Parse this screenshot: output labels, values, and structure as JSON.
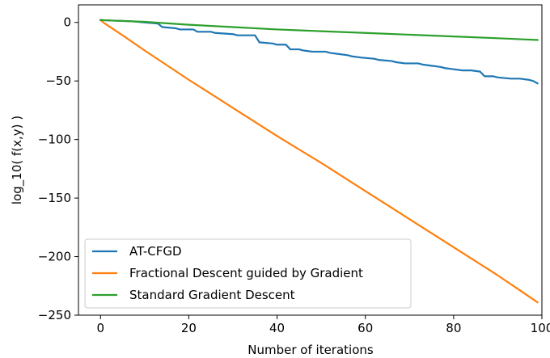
{
  "chart_data": {
    "type": "line",
    "title": "",
    "xlabel": "Number of iterations",
    "ylabel": "log_10( f(x,y) )",
    "xlim": [
      -5,
      100
    ],
    "ylim": [
      -250,
      15
    ],
    "xticks": [
      0,
      20,
      40,
      60,
      80,
      100
    ],
    "yticks": [
      0,
      -50,
      -100,
      -150,
      -200,
      -250
    ],
    "grid": false,
    "legend_position": "lower-left",
    "series": [
      {
        "name": "AT-CFGD",
        "color": "#1f77b4",
        "points": [
          [
            0,
            2
          ],
          [
            3,
            1.5
          ],
          [
            7,
            1
          ],
          [
            10,
            0
          ],
          [
            13,
            -1
          ],
          [
            14,
            -4
          ],
          [
            17,
            -5
          ],
          [
            18,
            -6
          ],
          [
            21,
            -6
          ],
          [
            22,
            -8
          ],
          [
            25,
            -8
          ],
          [
            26,
            -9
          ],
          [
            30,
            -10
          ],
          [
            31,
            -11
          ],
          [
            35,
            -11
          ],
          [
            36,
            -17
          ],
          [
            39,
            -18
          ],
          [
            40,
            -19
          ],
          [
            42,
            -19
          ],
          [
            43,
            -23
          ],
          [
            45,
            -23
          ],
          [
            46,
            -24
          ],
          [
            48,
            -25
          ],
          [
            51,
            -25
          ],
          [
            52,
            -26
          ],
          [
            54,
            -27
          ],
          [
            56,
            -28
          ],
          [
            57,
            -29
          ],
          [
            59,
            -30
          ],
          [
            62,
            -31
          ],
          [
            63,
            -32
          ],
          [
            66,
            -33
          ],
          [
            67,
            -34
          ],
          [
            69,
            -35
          ],
          [
            72,
            -35
          ],
          [
            73,
            -36
          ],
          [
            75,
            -37
          ],
          [
            77,
            -38
          ],
          [
            78,
            -39
          ],
          [
            80,
            -40
          ],
          [
            82,
            -41
          ],
          [
            84,
            -41
          ],
          [
            86,
            -42
          ],
          [
            87,
            -46
          ],
          [
            89,
            -46
          ],
          [
            90,
            -47
          ],
          [
            93,
            -48
          ],
          [
            95,
            -48
          ],
          [
            97,
            -49
          ],
          [
            98,
            -50
          ],
          [
            99,
            -52
          ]
        ]
      },
      {
        "name": "Fractional Descent guided by Gradient",
        "color": "#ff7f0e",
        "points": [
          [
            0,
            2
          ],
          [
            1,
            -1
          ],
          [
            3,
            -6
          ],
          [
            5,
            -11
          ],
          [
            10,
            -24
          ],
          [
            20,
            -49
          ],
          [
            30,
            -73
          ],
          [
            40,
            -97
          ],
          [
            50,
            -120
          ],
          [
            60,
            -144
          ],
          [
            70,
            -168
          ],
          [
            80,
            -192
          ],
          [
            90,
            -216
          ],
          [
            99,
            -239
          ]
        ]
      },
      {
        "name": "Standard Gradient Descent",
        "color": "#2ca02c",
        "points": [
          [
            0,
            2
          ],
          [
            10,
            0.5
          ],
          [
            20,
            -2
          ],
          [
            30,
            -4
          ],
          [
            40,
            -6
          ],
          [
            50,
            -7.5
          ],
          [
            60,
            -9
          ],
          [
            70,
            -10.5
          ],
          [
            80,
            -12
          ],
          [
            90,
            -13.5
          ],
          [
            99,
            -15
          ]
        ]
      }
    ]
  }
}
